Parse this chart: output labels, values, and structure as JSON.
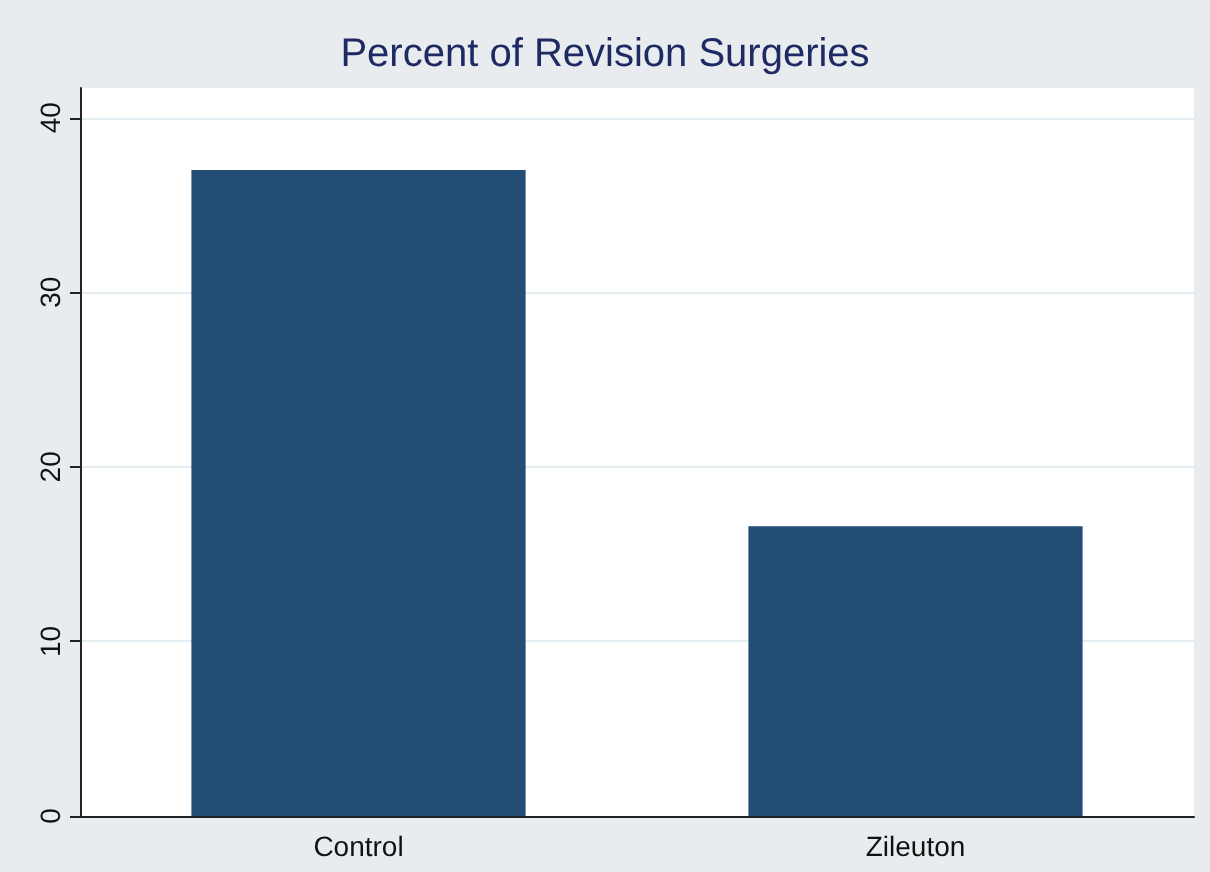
{
  "chart_data": {
    "type": "bar",
    "title": "Percent of Revision Surgeries",
    "categories": [
      "Control",
      "Zileuton"
    ],
    "values": [
      37,
      16.6
    ],
    "color": "#234d75",
    "ylim": [
      0,
      41.7
    ],
    "yticks": [
      0,
      10,
      20,
      30,
      40
    ],
    "grid": "y"
  }
}
